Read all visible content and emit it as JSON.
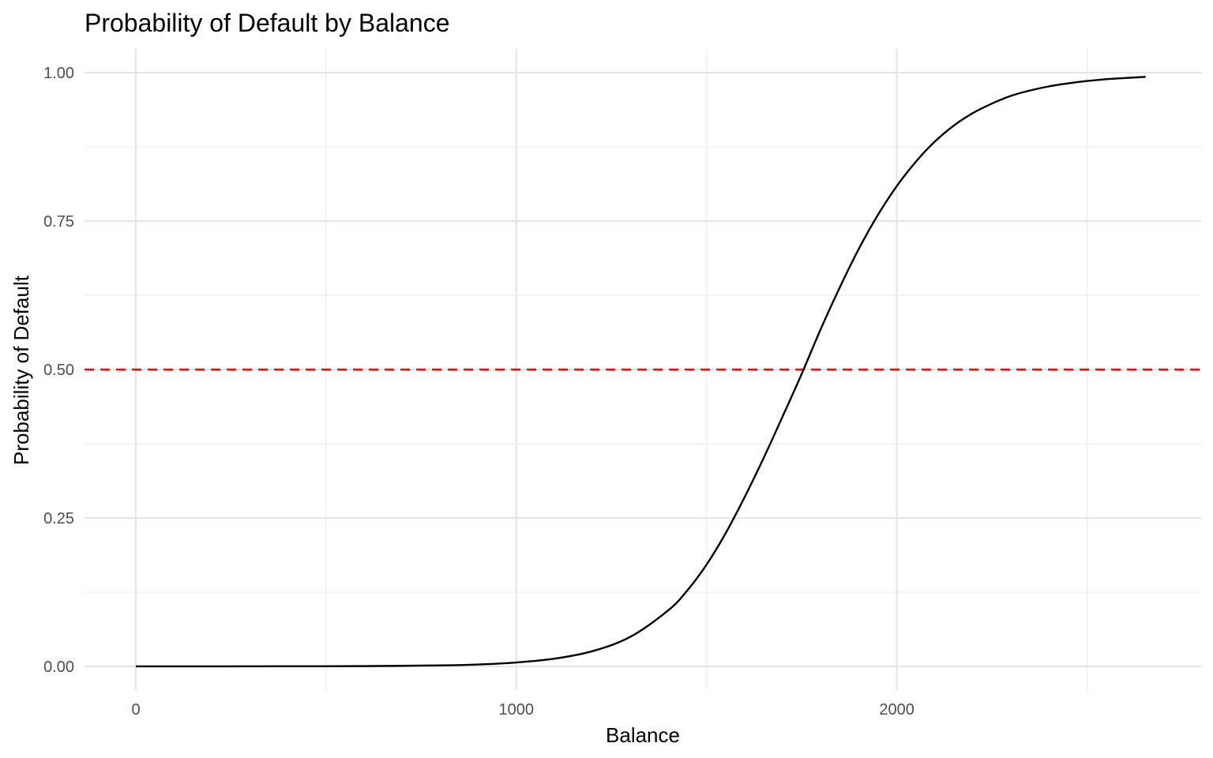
{
  "chart_data": {
    "type": "line",
    "title": "Probability of Default by Balance",
    "xlabel": "Balance",
    "ylabel": "Probability of Default",
    "xlim": [
      -135,
      2800
    ],
    "ylim": [
      -0.04,
      1.04
    ],
    "x_ticks": [
      0,
      1000,
      2000
    ],
    "x_tick_labels": [
      "0",
      "1000",
      "2000"
    ],
    "x_minor_ticks": [
      500,
      1500,
      2500
    ],
    "y_ticks": [
      0,
      0.25,
      0.5,
      0.75,
      1
    ],
    "y_tick_labels": [
      "0.00",
      "0.25",
      "0.50",
      "0.75",
      "1.00"
    ],
    "y_minor_ticks": [
      0.125,
      0.375,
      0.625,
      0.875
    ],
    "grid": true,
    "series": [
      {
        "color": "#000000",
        "x": [
          0,
          200,
          400,
          600,
          800,
          900,
          1000,
          1100,
          1200,
          1300,
          1400,
          1450,
          1500,
          1550,
          1600,
          1650,
          1700,
          1750,
          1800,
          1850,
          1900,
          1950,
          2000,
          2050,
          2100,
          2150,
          2200,
          2250,
          2300,
          2350,
          2400,
          2450,
          2500,
          2550,
          2600,
          2654
        ],
        "y": [
          0.0,
          0.0,
          0.0001,
          0.0004,
          0.0016,
          0.0032,
          0.0065,
          0.0129,
          0.0256,
          0.0498,
          0.0947,
          0.1283,
          0.1713,
          0.224,
          0.285,
          0.3509,
          0.421,
          0.4925,
          0.568,
          0.638,
          0.703,
          0.76,
          0.809,
          0.85,
          0.884,
          0.911,
          0.932,
          0.948,
          0.961,
          0.97,
          0.977,
          0.982,
          0.986,
          0.989,
          0.991,
          0.993
        ]
      }
    ],
    "reference_lines": [
      {
        "axis": "y",
        "value": 0.5,
        "color": "#ff0000",
        "style": "dashed"
      }
    ]
  }
}
